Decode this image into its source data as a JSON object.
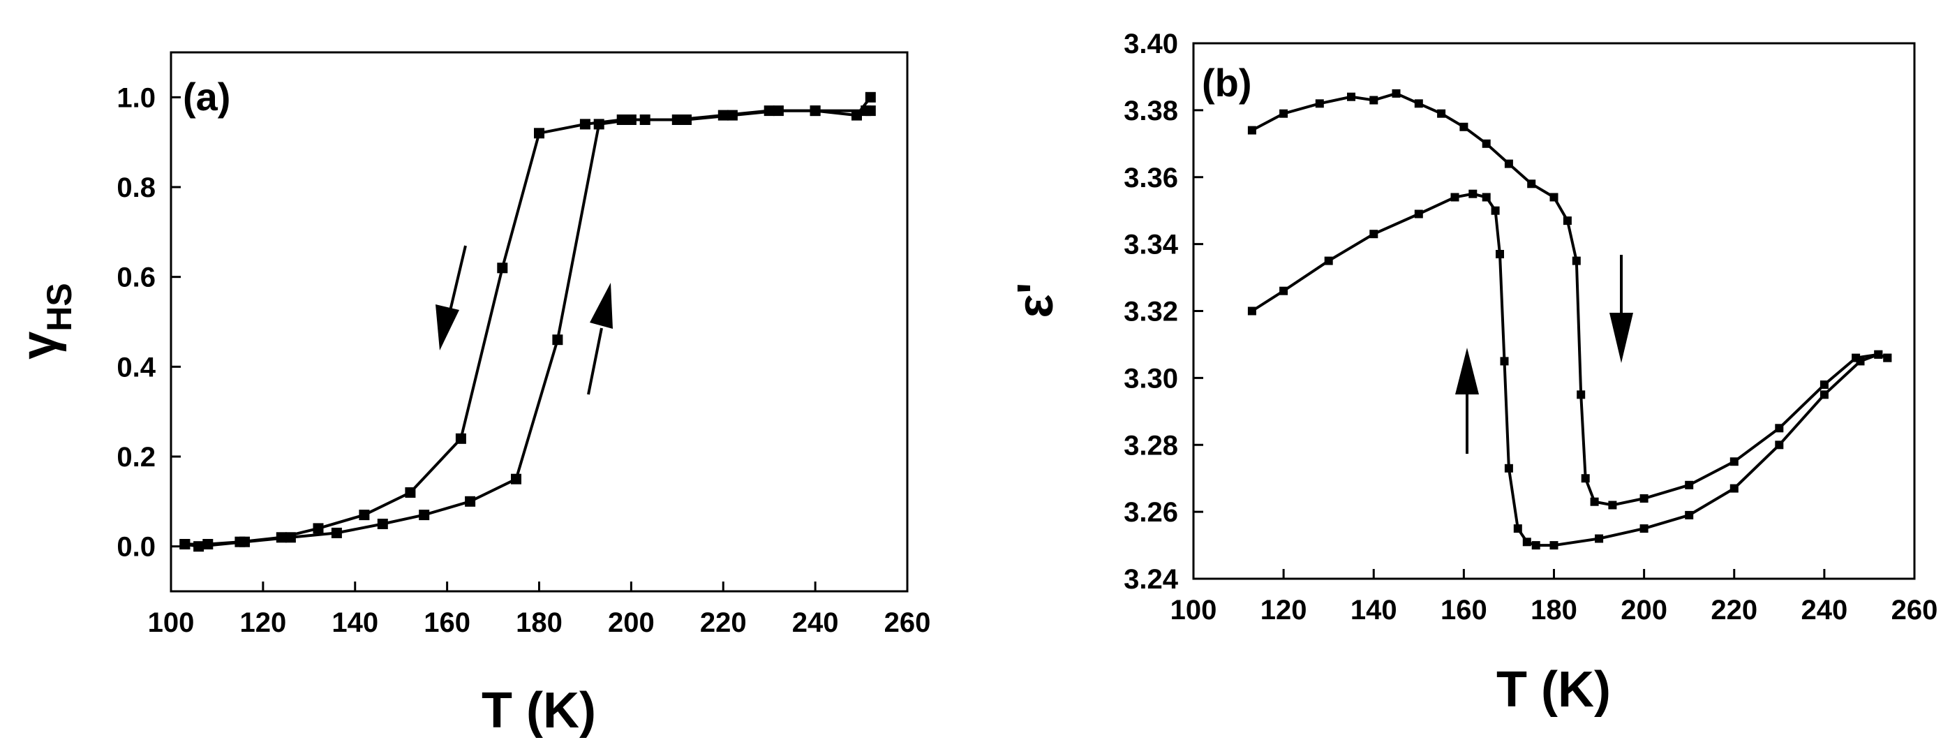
{
  "chart_data": [
    {
      "panel": "(a)",
      "type": "line",
      "xlabel": "T (K)",
      "ylabel_main": "γ",
      "ylabel_sub": "HS",
      "xlim": [
        100,
        260
      ],
      "ylim": [
        -0.1,
        1.1
      ],
      "xticks": [
        100,
        120,
        140,
        160,
        180,
        200,
        220,
        240,
        260
      ],
      "yticks": [
        0.0,
        0.2,
        0.4,
        0.6,
        0.8,
        1.0
      ],
      "ytick_labels": [
        "0.0",
        "0.2",
        "0.4",
        "0.6",
        "0.8",
        "1.0"
      ],
      "series": [
        {
          "direction": "cooling",
          "marker": "square",
          "x": [
            252,
            251,
            240,
            232,
            222,
            212,
            203,
            198,
            190,
            180,
            172,
            163,
            152,
            142,
            132,
            124,
            115,
            108,
            103
          ],
          "y": [
            0.97,
            0.97,
            0.97,
            0.97,
            0.96,
            0.95,
            0.95,
            0.95,
            0.94,
            0.92,
            0.62,
            0.24,
            0.12,
            0.07,
            0.04,
            0.02,
            0.01,
            0.005,
            0.005
          ]
        },
        {
          "direction": "heating",
          "marker": "square",
          "x": [
            103,
            106,
            116,
            126,
            136,
            146,
            155,
            165,
            175,
            184,
            193,
            200,
            210,
            220,
            230,
            240,
            249,
            252
          ],
          "y": [
            0.005,
            0.0,
            0.01,
            0.02,
            0.03,
            0.05,
            0.07,
            0.1,
            0.15,
            0.46,
            0.94,
            0.95,
            0.95,
            0.96,
            0.97,
            0.97,
            0.96,
            1.0
          ]
        }
      ],
      "annotations": [
        {
          "type": "arrow",
          "direction": "down",
          "meaning": "cooling"
        },
        {
          "type": "arrow",
          "direction": "up",
          "meaning": "heating"
        }
      ]
    },
    {
      "panel": "(b)",
      "type": "line",
      "xlabel": "T (K)",
      "ylabel": "ε'",
      "xlim": [
        100,
        260
      ],
      "ylim": [
        3.24,
        3.4
      ],
      "xticks": [
        100,
        120,
        140,
        160,
        180,
        200,
        220,
        240,
        260
      ],
      "yticks": [
        3.24,
        3.26,
        3.28,
        3.3,
        3.32,
        3.34,
        3.36,
        3.38,
        3.4
      ],
      "ytick_labels": [
        "3.24",
        "3.26",
        "3.28",
        "3.30",
        "3.32",
        "3.34",
        "3.36",
        "3.38",
        "3.40"
      ],
      "series": [
        {
          "direction": "cooling",
          "marker": "square",
          "x": [
            113,
            120,
            128,
            135,
            140,
            145,
            150,
            155,
            160,
            165,
            170,
            175,
            180,
            183,
            185,
            186,
            187,
            189,
            193,
            200,
            210,
            220,
            230,
            240,
            247,
            252,
            254
          ],
          "y": [
            3.374,
            3.379,
            3.382,
            3.384,
            3.383,
            3.385,
            3.382,
            3.379,
            3.375,
            3.37,
            3.364,
            3.358,
            3.354,
            3.347,
            3.335,
            3.295,
            3.27,
            3.263,
            3.262,
            3.264,
            3.268,
            3.275,
            3.285,
            3.298,
            3.306,
            3.307,
            3.306
          ]
        },
        {
          "direction": "heating",
          "marker": "square",
          "x": [
            113,
            120,
            130,
            140,
            150,
            158,
            162,
            165,
            167,
            168,
            169,
            170,
            172,
            174,
            176,
            180,
            190,
            200,
            210,
            220,
            230,
            240,
            248,
            252,
            254
          ],
          "y": [
            3.32,
            3.326,
            3.335,
            3.343,
            3.349,
            3.354,
            3.355,
            3.354,
            3.35,
            3.337,
            3.305,
            3.273,
            3.255,
            3.251,
            3.25,
            3.25,
            3.252,
            3.255,
            3.259,
            3.267,
            3.28,
            3.295,
            3.305,
            3.307,
            3.306
          ]
        }
      ],
      "annotations": [
        {
          "type": "arrow",
          "direction": "down",
          "meaning": "cooling"
        },
        {
          "type": "arrow",
          "direction": "up",
          "meaning": "heating"
        }
      ]
    }
  ]
}
